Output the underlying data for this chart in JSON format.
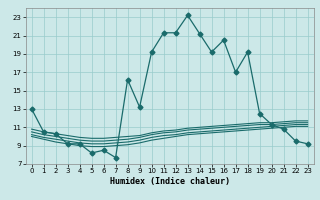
{
  "title": "",
  "xlabel": "Humidex (Indice chaleur)",
  "xlim": [
    -0.5,
    23.5
  ],
  "ylim": [
    7,
    24
  ],
  "yticks": [
    7,
    9,
    11,
    13,
    15,
    17,
    19,
    21,
    23
  ],
  "xticks": [
    0,
    1,
    2,
    3,
    4,
    5,
    6,
    7,
    8,
    9,
    10,
    11,
    12,
    13,
    14,
    15,
    16,
    17,
    18,
    19,
    20,
    21,
    22,
    23
  ],
  "bg_color": "#cce8e8",
  "grid_color": "#99cccc",
  "line_color": "#1a6b6b",
  "line1_x": [
    0,
    1,
    2,
    3,
    4,
    5,
    6,
    7,
    8,
    9,
    10,
    11,
    12,
    13,
    14,
    15,
    16,
    17,
    18,
    19,
    20,
    21,
    22,
    23
  ],
  "line1_y": [
    13.0,
    10.5,
    10.3,
    9.2,
    9.2,
    8.2,
    8.5,
    7.7,
    16.2,
    13.2,
    19.2,
    21.3,
    21.3,
    23.2,
    21.2,
    19.2,
    20.5,
    17.0,
    19.2,
    12.5,
    11.3,
    10.8,
    9.5,
    9.2
  ],
  "line2_x": [
    0,
    1,
    2,
    3,
    4,
    5,
    6,
    7,
    8,
    9,
    10,
    11,
    12,
    13,
    14,
    15,
    16,
    17,
    18,
    19,
    20,
    21,
    22,
    23
  ],
  "line2_y": [
    10.8,
    10.5,
    10.3,
    10.1,
    9.9,
    9.8,
    9.8,
    9.9,
    10.0,
    10.1,
    10.4,
    10.6,
    10.7,
    10.9,
    11.0,
    11.1,
    11.2,
    11.3,
    11.4,
    11.5,
    11.5,
    11.6,
    11.7,
    11.7
  ],
  "line3_x": [
    0,
    1,
    2,
    3,
    4,
    5,
    6,
    7,
    8,
    9,
    10,
    11,
    12,
    13,
    14,
    15,
    16,
    17,
    18,
    19,
    20,
    21,
    22,
    23
  ],
  "line3_y": [
    10.5,
    10.2,
    10.0,
    9.8,
    9.6,
    9.5,
    9.5,
    9.6,
    9.7,
    9.9,
    10.2,
    10.4,
    10.5,
    10.7,
    10.8,
    10.9,
    11.0,
    11.1,
    11.2,
    11.3,
    11.3,
    11.4,
    11.5,
    11.5
  ],
  "line4_x": [
    0,
    1,
    2,
    3,
    4,
    5,
    6,
    7,
    8,
    9,
    10,
    11,
    12,
    13,
    14,
    15,
    16,
    17,
    18,
    19,
    20,
    21,
    22,
    23
  ],
  "line4_y": [
    10.2,
    9.9,
    9.7,
    9.5,
    9.3,
    9.2,
    9.2,
    9.3,
    9.4,
    9.6,
    9.9,
    10.1,
    10.2,
    10.4,
    10.5,
    10.6,
    10.7,
    10.8,
    10.9,
    11.0,
    11.1,
    11.2,
    11.3,
    11.3
  ],
  "line5_x": [
    0,
    1,
    2,
    3,
    4,
    5,
    6,
    7,
    8,
    9,
    10,
    11,
    12,
    13,
    14,
    15,
    16,
    17,
    18,
    19,
    20,
    21,
    22,
    23
  ],
  "line5_y": [
    10.0,
    9.7,
    9.4,
    9.2,
    9.0,
    8.9,
    8.9,
    9.0,
    9.1,
    9.3,
    9.6,
    9.8,
    10.0,
    10.2,
    10.3,
    10.4,
    10.5,
    10.6,
    10.7,
    10.8,
    10.9,
    11.0,
    11.1,
    11.1
  ]
}
